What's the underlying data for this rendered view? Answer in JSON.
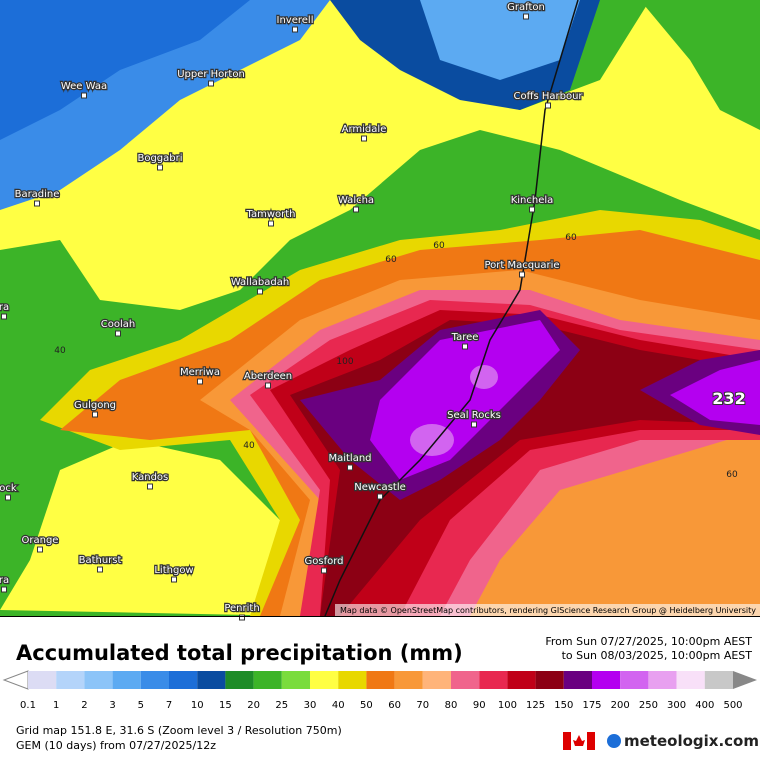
{
  "map": {
    "places": [
      "Grafton",
      "Inverell",
      "Coffs Harbour",
      "Wee Waa",
      "Upper Horton",
      "Armidale",
      "Boggabri",
      "Baradine",
      "Walcha",
      "Kinchela",
      "Tamworth",
      "Port Macquarie",
      "Wallabadah",
      "Coolah",
      "Taree",
      "Merriwa",
      "Aberdeen",
      "Gulgong",
      "Seal Rocks",
      "Maitland",
      "Kandos",
      "Newcastle",
      "Orange",
      "Bathurst",
      "Gosford",
      "Lithgow",
      "Penrith",
      "ra",
      "ock",
      "ra"
    ],
    "contour_labels": [
      "40",
      "60",
      "60",
      "60",
      "100",
      "40",
      "60"
    ],
    "max_label": "232",
    "attribution": "Map data © OpenStreetMap contributors, rendering GIScience Research Group @ Heidelberg University"
  },
  "header": {
    "title": "Accumulated total precipitation (mm)",
    "from": "From Sun 07/27/2025, 10:00pm AEST",
    "to": "to Sun 08/03/2025, 10:00pm AEST"
  },
  "legend": {
    "ticks": [
      "0.1",
      "1",
      "2",
      "3",
      "5",
      "7",
      "10",
      "15",
      "20",
      "25",
      "30",
      "40",
      "50",
      "60",
      "70",
      "80",
      "90",
      "100",
      "125",
      "150",
      "175",
      "200",
      "250",
      "300",
      "400",
      "500"
    ],
    "colors": [
      "#dcdcf4",
      "#b4d4fa",
      "#8cc4f8",
      "#5caaf2",
      "#3a8ce8",
      "#1c6ed8",
      "#0a4ca0",
      "#1e8c28",
      "#3cb428",
      "#7adc3c",
      "#ffff44",
      "#e8d800",
      "#f07814",
      "#f89838",
      "#ffb47a",
      "#f0648c",
      "#e82850",
      "#c00018",
      "#8c0014",
      "#6a0080",
      "#b400f0",
      "#d264f0",
      "#e8a0f0",
      "#f8e0f8",
      "#c8c8c8"
    ]
  },
  "footer": {
    "grid": "Grid map 151.8 E, 31.6 S (Zoom level 3 / Resolution 750m)",
    "model": "GEM (10 days) from 07/27/2025/12z",
    "brand": "meteologix.com"
  }
}
